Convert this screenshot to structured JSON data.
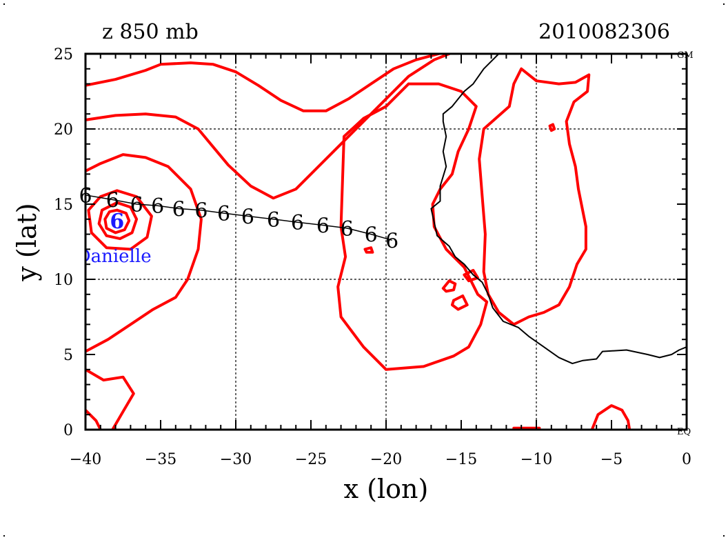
{
  "chart_data": {
    "type": "line",
    "title_left": "z 850 mb",
    "title_right": "2010082306",
    "xlabel": "x (lon)",
    "ylabel": "y (lat)",
    "xlim": [
      -40,
      0
    ],
    "ylim": [
      0,
      25
    ],
    "x_ticks": [
      -40,
      -35,
      -30,
      -25,
      -20,
      -15,
      -10,
      -5,
      0
    ],
    "y_ticks": [
      0,
      5,
      10,
      15,
      20,
      25
    ],
    "grid": true,
    "corner_labels": {
      "top_right": "GM",
      "bottom_right": "EQ"
    },
    "storm": {
      "name": "Danielle",
      "color": "#1a1aff",
      "center": [
        -37.9,
        14.0
      ]
    },
    "track": {
      "symbol": "6",
      "points": [
        [
          -40.0,
          15.6
        ],
        [
          -38.2,
          15.3
        ],
        [
          -36.6,
          15.0
        ],
        [
          -35.2,
          14.9
        ],
        [
          -33.8,
          14.7
        ],
        [
          -32.3,
          14.6
        ],
        [
          -30.8,
          14.4
        ],
        [
          -29.2,
          14.2
        ],
        [
          -27.5,
          14.0
        ],
        [
          -25.9,
          13.8
        ],
        [
          -24.2,
          13.6
        ],
        [
          -22.6,
          13.4
        ],
        [
          -21.0,
          13.0
        ],
        [
          -19.6,
          12.6
        ]
      ]
    },
    "coastline": {
      "color": "#000000",
      "points": [
        [
          -12.5,
          25.0
        ],
        [
          -13.5,
          24.0
        ],
        [
          -14.2,
          23.0
        ],
        [
          -14.8,
          22.5
        ],
        [
          -15.6,
          21.5
        ],
        [
          -16.2,
          21.0
        ],
        [
          -16.2,
          20.5
        ],
        [
          -16.0,
          19.5
        ],
        [
          -16.2,
          18.5
        ],
        [
          -16.0,
          17.5
        ],
        [
          -16.4,
          16.2
        ],
        [
          -16.4,
          15.2
        ],
        [
          -17.0,
          14.7
        ],
        [
          -16.8,
          13.8
        ],
        [
          -16.6,
          12.9
        ],
        [
          -15.8,
          12.2
        ],
        [
          -15.4,
          11.5
        ],
        [
          -14.8,
          11.0
        ],
        [
          -14.2,
          10.3
        ],
        [
          -13.6,
          9.8
        ],
        [
          -13.2,
          9.0
        ],
        [
          -12.9,
          8.1
        ],
        [
          -12.2,
          7.2
        ],
        [
          -11.2,
          6.8
        ],
        [
          -10.5,
          6.2
        ],
        [
          -9.5,
          5.5
        ],
        [
          -8.5,
          4.8
        ],
        [
          -7.6,
          4.4
        ],
        [
          -6.9,
          4.6
        ],
        [
          -6.0,
          4.7
        ],
        [
          -5.6,
          5.2
        ],
        [
          -4.0,
          5.3
        ],
        [
          -2.6,
          5.0
        ],
        [
          -1.8,
          4.8
        ],
        [
          -1.0,
          5.0
        ],
        [
          -0.5,
          5.3
        ],
        [
          0.0,
          5.5
        ]
      ]
    },
    "contours": {
      "color": "#ff0000",
      "lines": [
        [
          [
            -40.0,
            22.9
          ],
          [
            -38.0,
            23.3
          ],
          [
            -36.0,
            23.9
          ],
          [
            -35.0,
            24.3
          ],
          [
            -33.0,
            24.4
          ],
          [
            -31.5,
            24.3
          ],
          [
            -30.0,
            23.8
          ],
          [
            -28.5,
            22.9
          ],
          [
            -27.0,
            21.9
          ],
          [
            -25.5,
            21.2
          ],
          [
            -24.0,
            21.2
          ],
          [
            -22.5,
            22.0
          ],
          [
            -21.0,
            23.0
          ],
          [
            -19.5,
            24.0
          ],
          [
            -18.0,
            24.6
          ],
          [
            -16.5,
            25.0
          ]
        ],
        [
          [
            -40.0,
            20.6
          ],
          [
            -38.0,
            20.9
          ],
          [
            -36.0,
            21.0
          ],
          [
            -34.0,
            20.8
          ],
          [
            -32.5,
            20.0
          ],
          [
            -31.5,
            18.8
          ],
          [
            -30.5,
            17.6
          ],
          [
            -29.0,
            16.2
          ],
          [
            -27.5,
            15.4
          ],
          [
            -26.0,
            16.0
          ],
          [
            -24.5,
            17.5
          ],
          [
            -23.0,
            19.0
          ],
          [
            -21.5,
            20.5
          ],
          [
            -20.0,
            22.0
          ],
          [
            -18.5,
            23.5
          ],
          [
            -16.8,
            24.6
          ],
          [
            -15.8,
            25.0
          ]
        ],
        [
          [
            -40.0,
            17.2
          ],
          [
            -39.0,
            17.7
          ],
          [
            -37.5,
            18.3
          ],
          [
            -36.0,
            18.1
          ],
          [
            -34.5,
            17.5
          ],
          [
            -33.0,
            16.0
          ],
          [
            -32.3,
            14.0
          ],
          [
            -32.5,
            12.0
          ],
          [
            -33.2,
            10.0
          ],
          [
            -34.0,
            8.8
          ],
          [
            -35.5,
            8.0
          ],
          [
            -37.0,
            7.0
          ],
          [
            -38.5,
            6.0
          ],
          [
            -40.0,
            5.2
          ]
        ],
        [
          [
            -40.0,
            4.0
          ],
          [
            -38.8,
            3.3
          ],
          [
            -37.5,
            3.5
          ],
          [
            -36.8,
            2.4
          ],
          [
            -37.5,
            1.2
          ],
          [
            -38.2,
            0.0
          ]
        ],
        [
          [
            -40.0,
            1.3
          ],
          [
            -39.3,
            0.6
          ],
          [
            -39.0,
            0.0
          ]
        ],
        [
          [
            -37.9,
            15.9
          ],
          [
            -36.6,
            15.5
          ],
          [
            -35.6,
            14.2
          ],
          [
            -35.9,
            12.8
          ],
          [
            -37.0,
            12.0
          ],
          [
            -38.6,
            12.1
          ],
          [
            -39.6,
            13.1
          ],
          [
            -39.8,
            14.6
          ],
          [
            -39.0,
            15.5
          ],
          [
            -37.9,
            15.9
          ]
        ],
        [
          [
            -37.9,
            15.1
          ],
          [
            -37.0,
            14.8
          ],
          [
            -36.6,
            14.0
          ],
          [
            -36.9,
            13.1
          ],
          [
            -37.7,
            12.7
          ],
          [
            -38.6,
            12.9
          ],
          [
            -39.1,
            13.7
          ],
          [
            -38.9,
            14.6
          ],
          [
            -37.9,
            15.1
          ]
        ],
        [
          [
            -37.9,
            14.6
          ],
          [
            -37.3,
            14.4
          ],
          [
            -37.1,
            13.9
          ],
          [
            -37.4,
            13.3
          ],
          [
            -38.0,
            13.1
          ],
          [
            -38.6,
            13.4
          ],
          [
            -38.7,
            14.0
          ],
          [
            -38.4,
            14.5
          ],
          [
            -37.9,
            14.6
          ]
        ],
        [
          [
            -18.5,
            23.0
          ],
          [
            -20.0,
            21.5
          ],
          [
            -21.5,
            20.7
          ],
          [
            -22.8,
            19.5
          ],
          [
            -22.9,
            16.5
          ],
          [
            -23.0,
            13.5
          ],
          [
            -22.7,
            11.5
          ],
          [
            -23.2,
            9.5
          ],
          [
            -23.0,
            7.5
          ],
          [
            -21.5,
            5.5
          ],
          [
            -20.0,
            4.0
          ],
          [
            -17.5,
            4.2
          ],
          [
            -15.5,
            4.9
          ],
          [
            -14.5,
            5.5
          ],
          [
            -13.7,
            7.0
          ],
          [
            -13.3,
            8.5
          ],
          [
            -13.9,
            9.0
          ],
          [
            -14.8,
            10.8
          ],
          [
            -16.0,
            12.0
          ],
          [
            -16.8,
            13.5
          ],
          [
            -16.9,
            15.0
          ],
          [
            -16.4,
            16.0
          ],
          [
            -15.6,
            17.0
          ],
          [
            -15.2,
            18.5
          ],
          [
            -14.5,
            20.0
          ],
          [
            -14.0,
            21.5
          ],
          [
            -15.0,
            22.5
          ],
          [
            -16.5,
            23.0
          ],
          [
            -18.5,
            23.0
          ]
        ],
        [
          [
            -11.0,
            24.0
          ],
          [
            -10.0,
            23.2
          ],
          [
            -8.5,
            23.0
          ],
          [
            -7.4,
            23.1
          ],
          [
            -6.5,
            23.6
          ],
          [
            -6.6,
            22.5
          ],
          [
            -7.5,
            21.8
          ],
          [
            -8.0,
            20.5
          ],
          [
            -7.8,
            19.0
          ],
          [
            -7.4,
            17.5
          ],
          [
            -7.2,
            16.0
          ],
          [
            -6.7,
            13.5
          ],
          [
            -6.7,
            12.0
          ],
          [
            -7.3,
            11.0
          ],
          [
            -7.8,
            9.5
          ],
          [
            -8.5,
            8.3
          ],
          [
            -9.5,
            7.8
          ],
          [
            -10.5,
            7.5
          ],
          [
            -11.5,
            7.0
          ],
          [
            -12.5,
            7.8
          ],
          [
            -13.2,
            9.0
          ],
          [
            -13.5,
            10.5
          ],
          [
            -13.4,
            13.0
          ],
          [
            -13.6,
            15.5
          ],
          [
            -13.8,
            18.0
          ],
          [
            -13.5,
            20.0
          ],
          [
            -11.8,
            21.5
          ],
          [
            -11.5,
            23.0
          ],
          [
            -11.0,
            24.0
          ]
        ],
        [
          [
            -16.2,
            9.4
          ],
          [
            -15.8,
            9.9
          ],
          [
            -15.4,
            9.7
          ],
          [
            -15.5,
            9.3
          ],
          [
            -16.0,
            9.2
          ],
          [
            -16.2,
            9.4
          ]
        ],
        [
          [
            -15.5,
            8.6
          ],
          [
            -14.9,
            8.9
          ],
          [
            -14.6,
            8.3
          ],
          [
            -15.2,
            8.0
          ],
          [
            -15.6,
            8.3
          ],
          [
            -15.5,
            8.6
          ]
        ],
        [
          [
            -14.8,
            10.3
          ],
          [
            -14.2,
            10.6
          ],
          [
            -13.9,
            10.1
          ],
          [
            -14.5,
            9.9
          ],
          [
            -14.8,
            10.3
          ]
        ],
        [
          [
            -21.4,
            12.0
          ],
          [
            -21.0,
            12.1
          ],
          [
            -20.9,
            11.8
          ],
          [
            -21.3,
            11.8
          ],
          [
            -21.4,
            12.0
          ]
        ],
        [
          [
            -9.1,
            20.2
          ],
          [
            -8.9,
            20.3
          ],
          [
            -8.8,
            20.0
          ],
          [
            -9.0,
            19.9
          ],
          [
            -9.1,
            20.2
          ]
        ],
        [
          [
            -6.3,
            0.0
          ],
          [
            -5.9,
            1.0
          ],
          [
            -5.0,
            1.6
          ],
          [
            -4.3,
            1.3
          ],
          [
            -3.9,
            0.6
          ],
          [
            -3.8,
            0.0
          ]
        ],
        [
          [
            -11.5,
            0.1
          ],
          [
            -10.5,
            0.1
          ],
          [
            -9.8,
            0.1
          ]
        ]
      ]
    }
  }
}
